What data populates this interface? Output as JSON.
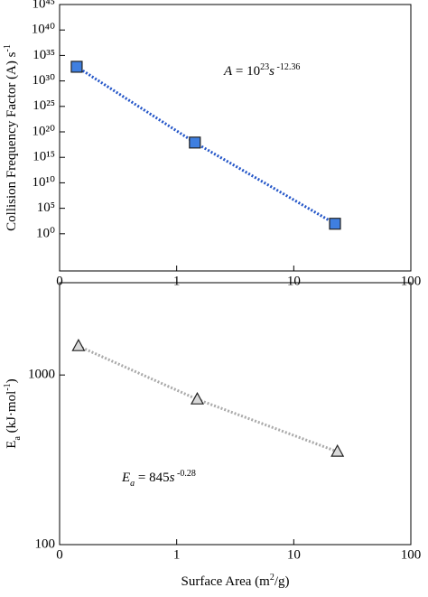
{
  "chart_data": [
    {
      "type": "line",
      "log_x": true,
      "log_y": true,
      "ylabel_parts": [
        {
          "text": "Collision Frequency Factor (A) s"
        },
        {
          "text": "-1",
          "style": "sup"
        }
      ],
      "annotation_parts": [
        {
          "text": "A",
          "style": "italic"
        },
        {
          "text": " = 10"
        },
        {
          "text": "23",
          "style": "sup"
        },
        {
          "text": "s",
          "style": "italic"
        },
        {
          "text": " -12.36",
          "style": "sup"
        }
      ],
      "x": [
        0.14,
        1.43,
        22.5
      ],
      "series": [
        {
          "color": "#3f7fe0",
          "line_color": "#2456c8",
          "marker": "square",
          "values": [
            6e+32,
            8e+17,
            93
          ]
        }
      ],
      "xlim": [
        0.1,
        100
      ],
      "xticks": [
        {
          "value": 0.1,
          "label": "0"
        },
        1,
        10,
        100
      ],
      "ylim": [
        5e-08,
        1e+45
      ],
      "yticks": [
        {
          "value": 1,
          "label": "10⁰"
        },
        {
          "value": 100000.0,
          "label": "10⁵"
        },
        {
          "value": 10000000000.0,
          "label": "10¹⁰"
        },
        {
          "value": 1000000000000000.0,
          "label": "10¹⁵"
        },
        {
          "value": 1e+20,
          "label": "10²⁰"
        },
        {
          "value": 1e+25,
          "label": "10²⁵"
        },
        {
          "value": 1e+30,
          "label": "10³⁰"
        },
        {
          "value": 1e+35,
          "label": "10³⁵"
        },
        {
          "value": 1e+40,
          "label": "10⁴⁰"
        },
        {
          "value": 1e+45,
          "label": "10⁴⁵"
        }
      ]
    },
    {
      "type": "line",
      "log_x": true,
      "log_y": true,
      "ylabel_parts": [
        {
          "text": "E"
        },
        {
          "text": "a",
          "style": "sub"
        },
        {
          "text": " (kJ·mol"
        },
        {
          "text": "-1",
          "style": "sup"
        },
        {
          "text": ")"
        }
      ],
      "xlabel_parts": [
        {
          "text": "Surface Area (m"
        },
        {
          "text": "2",
          "style": "sup"
        },
        {
          "text": "/g)"
        }
      ],
      "annotation_parts": [
        {
          "text": "E",
          "style": "italic"
        },
        {
          "text": "a",
          "style": "sub-italic"
        },
        {
          "text": " = 845"
        },
        {
          "text": "s",
          "style": "italic"
        },
        {
          "text": " -0.28",
          "style": "sup"
        }
      ],
      "x": [
        0.145,
        1.5,
        23.6
      ],
      "series": [
        {
          "color": "#d9d9d9",
          "line_color": "#aaaaaa",
          "marker": "triangle",
          "values": [
            1480,
            718,
            353
          ]
        }
      ],
      "xlim": [
        0.1,
        100
      ],
      "xticks": [
        {
          "value": 0.1,
          "label": "0"
        },
        1,
        10,
        100
      ],
      "ylim": [
        100,
        3500
      ],
      "yticks": [
        100,
        1000
      ]
    }
  ]
}
